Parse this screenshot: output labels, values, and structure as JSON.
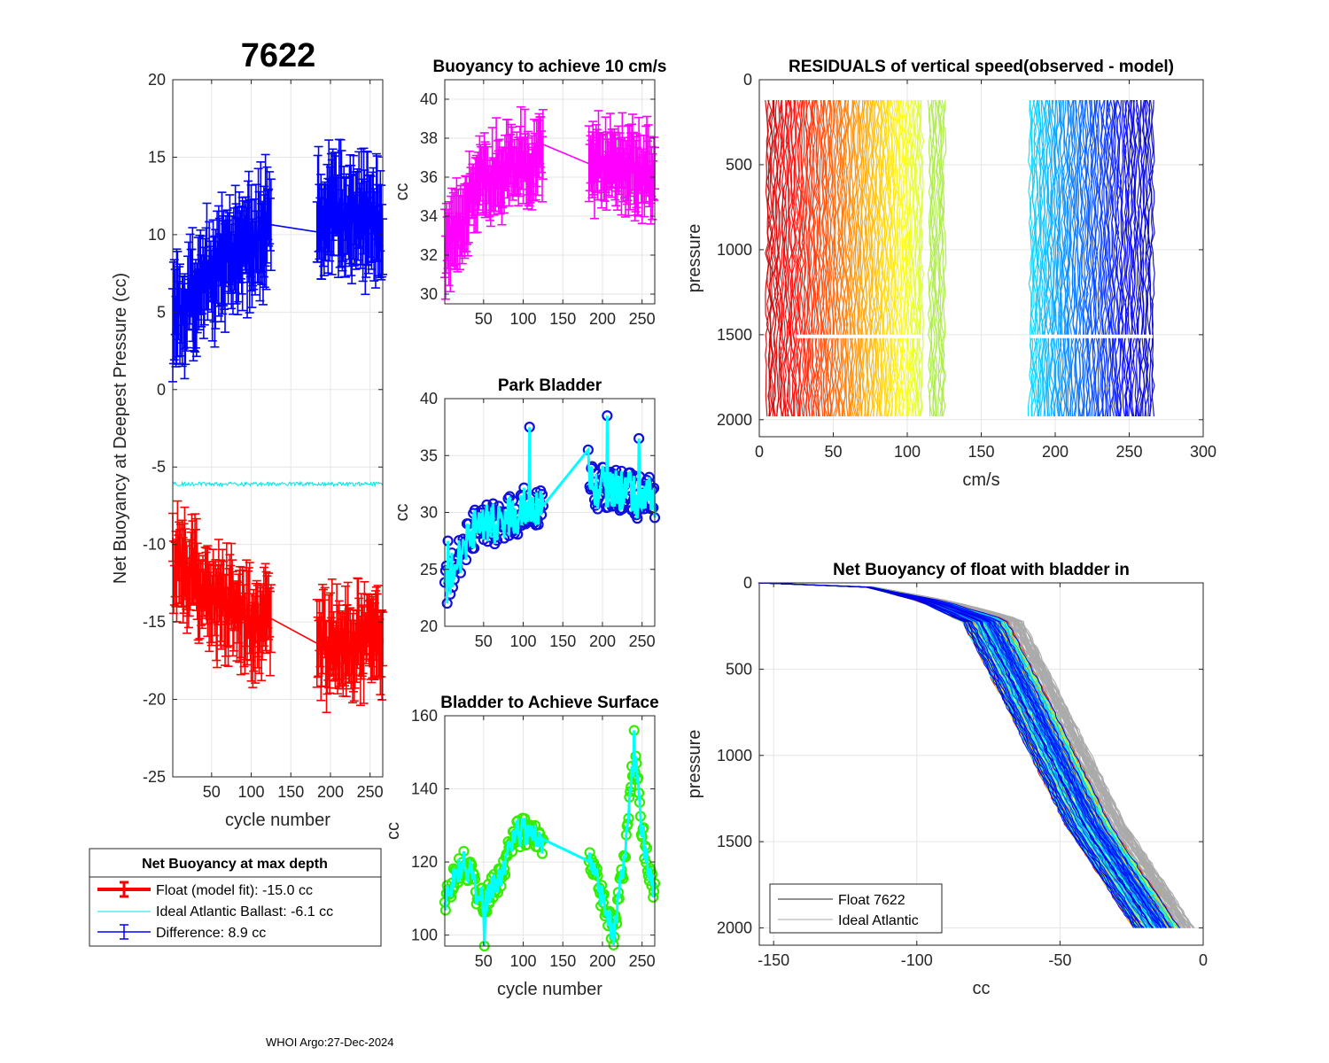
{
  "figure": {
    "float_id": "7622",
    "footer": "WHOI Argo:27-Dec-2024"
  },
  "colors": {
    "difference": "#0000ff",
    "float": "#ff0000",
    "ideal": "#00e5e5",
    "buoyancy": "#ff00ff",
    "park_marker": "#1010dd",
    "park_line": "#00ffff",
    "surface_marker": "#33ee00",
    "surface_line": "#00ffff",
    "grid": "#e6e6e6",
    "axis": "#262626",
    "ideal_profile": "#aaaaaa"
  },
  "chart_data": [
    {
      "id": "net_buoyancy",
      "type": "line",
      "title": "",
      "xlabel": "cycle number",
      "ylabel": "Net Buoyancy at Deepest Pressure (cc)",
      "xlim": [
        1,
        266
      ],
      "ylim": [
        -25,
        20
      ],
      "xticks": [
        50,
        100,
        150,
        200,
        250
      ],
      "xtick_labels": [
        "50",
        "100",
        "150",
        "200",
        "250"
      ],
      "yticks": [
        -25,
        -20,
        -15,
        -10,
        -5,
        0,
        5,
        10,
        15,
        20
      ],
      "ytick_labels": [
        "-25",
        "-20",
        "-15",
        "-10",
        "-5",
        "0",
        "5",
        "10",
        "15",
        "20"
      ],
      "cycle_ranges": [
        [
          1,
          125
        ],
        [
          183,
          266
        ]
      ],
      "series": [
        {
          "name": "Difference",
          "key": "difference",
          "start": [
            1,
            4.5
          ],
          "mid": [
            60,
            8.0
          ],
          "gap_start": [
            120,
            10.2
          ],
          "gap_end": [
            183,
            11.5
          ],
          "end": [
            266,
            10.5
          ],
          "error": 2.5
        },
        {
          "name": "Ideal Atlantic Ballast",
          "key": "ideal",
          "level": -6.1
        },
        {
          "name": "Float (model fit)",
          "key": "float",
          "start": [
            1,
            -11.0
          ],
          "mid": [
            60,
            -13.5
          ],
          "gap_start": [
            120,
            -15.5
          ],
          "gap_end": [
            183,
            -16.5
          ],
          "end": [
            266,
            -16.2
          ],
          "error": 2.0
        }
      ],
      "legend": {
        "title": "Net Buoyancy at max depth",
        "entries": [
          {
            "label": "Float (model fit): -15.0 cc",
            "key": "float",
            "errorbar": true
          },
          {
            "label": "Ideal Atlantic Ballast:  -6.1 cc",
            "key": "ideal",
            "errorbar": false
          },
          {
            "label": "Difference:   8.9 cc",
            "key": "difference",
            "errorbar": true
          }
        ]
      }
    },
    {
      "id": "buoyancy_10cms",
      "type": "line",
      "title": "Buoyancy to achieve 10 cm/s",
      "xlabel": "",
      "ylabel": "cc",
      "xlim": [
        1,
        266
      ],
      "ylim": [
        29.5,
        41
      ],
      "xticks": [
        50,
        100,
        150,
        200,
        250
      ],
      "xtick_labels": [
        "50",
        "100",
        "150",
        "200",
        "250"
      ],
      "yticks": [
        30,
        32,
        34,
        36,
        38,
        40
      ],
      "ytick_labels": [
        "30",
        "32",
        "34",
        "36",
        "38",
        "40"
      ],
      "trend": [
        [
          1,
          32.3
        ],
        [
          25,
          34.0
        ],
        [
          40,
          35.5
        ],
        [
          80,
          36.5
        ],
        [
          125,
          37.0
        ],
        [
          183,
          36.8
        ],
        [
          266,
          36.0
        ]
      ],
      "error": 1.3
    },
    {
      "id": "park_bladder",
      "type": "line",
      "title": "Park Bladder",
      "xlabel": "",
      "ylabel": "cc",
      "xlim": [
        1,
        266
      ],
      "ylim": [
        20,
        40
      ],
      "xticks": [
        50,
        100,
        150,
        200,
        250
      ],
      "xtick_labels": [
        "50",
        "100",
        "150",
        "200",
        "250"
      ],
      "yticks": [
        20,
        25,
        30,
        35,
        40
      ],
      "ytick_labels": [
        "20",
        "25",
        "30",
        "35",
        "40"
      ],
      "trend": [
        [
          1,
          23.5
        ],
        [
          25,
          27.0
        ],
        [
          40,
          28.5
        ],
        [
          80,
          29.5
        ],
        [
          125,
          31.0
        ],
        [
          183,
          32.5
        ],
        [
          266,
          31.0
        ]
      ],
      "spike_points": [
        [
          5,
          27.5
        ],
        [
          108,
          37.5
        ],
        [
          206,
          38.5
        ],
        [
          246,
          36.5
        ],
        [
          182,
          35.5
        ]
      ]
    },
    {
      "id": "bladder_surface",
      "type": "line",
      "title": "Bladder to Achieve Surface",
      "xlabel": "cycle number",
      "ylabel": "cc",
      "xlim": [
        1,
        266
      ],
      "ylim": [
        97,
        160
      ],
      "xticks": [
        50,
        100,
        150,
        200,
        250
      ],
      "xtick_labels": [
        "50",
        "100",
        "150",
        "200",
        "250"
      ],
      "yticks": [
        100,
        120,
        140,
        160
      ],
      "ytick_labels": [
        "100",
        "120",
        "140",
        "160"
      ],
      "trend": [
        [
          1,
          110
        ],
        [
          25,
          120
        ],
        [
          50,
          108
        ],
        [
          70,
          116
        ],
        [
          90,
          128
        ],
        [
          110,
          128
        ],
        [
          125,
          124
        ],
        [
          183,
          122
        ],
        [
          200,
          110
        ],
        [
          215,
          100
        ],
        [
          230,
          125
        ],
        [
          240,
          150
        ],
        [
          250,
          128
        ],
        [
          266,
          111
        ]
      ],
      "spike_points": [
        [
          240,
          156
        ],
        [
          243,
          147
        ],
        [
          51,
          97
        ],
        [
          215,
          99.5
        ]
      ]
    },
    {
      "id": "residuals",
      "type": "line",
      "title": "RESIDUALS of vertical speed(observed - model)",
      "xlabel": "cm/s",
      "ylabel": "pressure",
      "xlim": [
        0,
        300
      ],
      "ylim_reversed": [
        0,
        2100
      ],
      "xticks": [
        0,
        50,
        100,
        150,
        200,
        250,
        300
      ],
      "xtick_labels": [
        "0",
        "50",
        "100",
        "150",
        "200",
        "250",
        "300"
      ],
      "yticks": [
        0,
        500,
        1000,
        1500,
        2000
      ],
      "ytick_labels": [
        "0",
        "500",
        "1000",
        "1500",
        "2000"
      ],
      "bands": [
        [
          5,
          110
        ],
        [
          115,
          125
        ],
        [
          183,
          266
        ]
      ],
      "pressure_range": [
        120,
        2000
      ],
      "gap_pressure": 1510
    },
    {
      "id": "net_buoyancy_profile",
      "type": "line",
      "title": "Net Buoyancy of float with bladder in",
      "xlabel": "cc",
      "ylabel": "pressure",
      "xlim": [
        -155,
        0
      ],
      "ylim_reversed": [
        0,
        2100
      ],
      "xticks": [
        -150,
        -100,
        -50,
        0
      ],
      "xtick_labels": [
        "-150",
        "-100",
        "-50",
        "0"
      ],
      "yticks": [
        0,
        500,
        1000,
        1500,
        2000
      ],
      "ytick_labels": [
        "0",
        "500",
        "1000",
        "1500",
        "2000"
      ],
      "profile_shape": [
        [
          -155,
          0
        ],
        [
          -118,
          20
        ],
        [
          -95,
          110
        ],
        [
          -78,
          220
        ],
        [
          -63,
          700
        ],
        [
          -42,
          1400
        ],
        [
          -18,
          2000
        ]
      ],
      "spread": [
        -15,
        10
      ],
      "legend": {
        "entries": [
          {
            "label": "Float 7622",
            "key": "axis"
          },
          {
            "label": "Ideal Atlantic",
            "key": "ideal_profile"
          }
        ]
      }
    }
  ]
}
